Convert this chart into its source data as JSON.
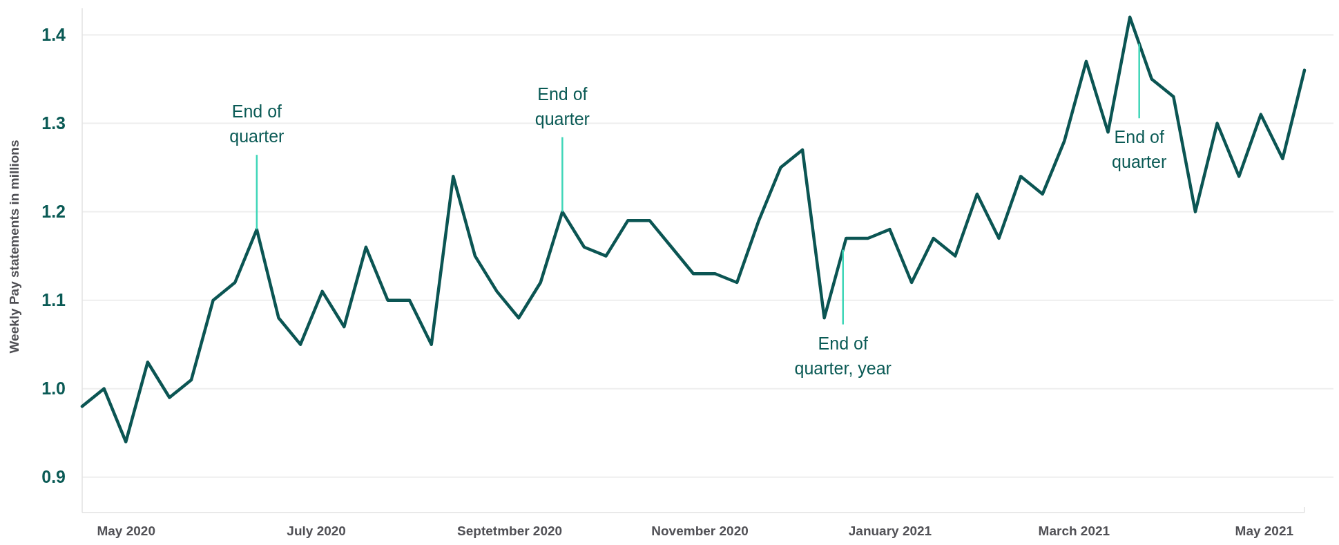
{
  "chart_data": {
    "type": "line",
    "ylabel": "Weekly Pay statements in millions",
    "x": [
      "2020-04-17",
      "2020-04-24",
      "2020-05-01",
      "2020-05-08",
      "2020-05-15",
      "2020-05-22",
      "2020-05-29",
      "2020-06-05",
      "2020-06-12",
      "2020-06-19",
      "2020-06-26",
      "2020-07-03",
      "2020-07-10",
      "2020-07-17",
      "2020-07-24",
      "2020-07-31",
      "2020-08-07",
      "2020-08-14",
      "2020-08-21",
      "2020-08-28",
      "2020-09-04",
      "2020-09-11",
      "2020-09-18",
      "2020-09-25",
      "2020-10-02",
      "2020-10-09",
      "2020-10-16",
      "2020-10-23",
      "2020-10-30",
      "2020-11-06",
      "2020-11-13",
      "2020-11-20",
      "2020-11-27",
      "2020-12-04",
      "2020-12-11",
      "2020-12-18",
      "2020-12-25",
      "2021-01-01",
      "2021-01-08",
      "2021-01-15",
      "2021-01-22",
      "2021-01-29",
      "2021-02-05",
      "2021-02-12",
      "2021-02-19",
      "2021-02-26",
      "2021-03-05",
      "2021-03-12",
      "2021-03-19",
      "2021-03-26",
      "2021-04-02",
      "2021-04-09",
      "2021-04-16",
      "2021-04-23",
      "2021-04-30",
      "2021-05-07",
      "2021-05-14"
    ],
    "series": [
      {
        "color": "#0b5553",
        "values": [
          0.98,
          1.0,
          0.94,
          1.03,
          0.99,
          1.01,
          1.1,
          1.12,
          1.18,
          1.08,
          1.05,
          1.11,
          1.07,
          1.16,
          1.1,
          1.1,
          1.05,
          1.24,
          1.15,
          1.11,
          1.08,
          1.12,
          1.2,
          1.16,
          1.15,
          1.19,
          1.19,
          1.16,
          1.13,
          1.13,
          1.12,
          1.19,
          1.25,
          1.27,
          1.08,
          1.17,
          1.17,
          1.18,
          1.12,
          1.17,
          1.15,
          1.22,
          1.17,
          1.24,
          1.22,
          1.28,
          1.37,
          1.29,
          1.42,
          1.35,
          1.33,
          1.2,
          1.3,
          1.24,
          1.31,
          1.26,
          1.36
        ]
      }
    ],
    "xlim": [
      "2020-04-17",
      "2021-05-14"
    ],
    "xticks": [
      {
        "value": "2020-05-01",
        "label": "May 2020"
      },
      {
        "value": "2020-07-01",
        "label": "July 2020"
      },
      {
        "value": "2020-09-01",
        "label": "Septetmber 2020"
      },
      {
        "value": "2020-11-01",
        "label": "November 2020"
      },
      {
        "value": "2021-01-01",
        "label": "January 2021"
      },
      {
        "value": "2021-03-01",
        "label": "March 2021"
      },
      {
        "value": "2021-05-01",
        "label": "May 2021"
      }
    ],
    "ylim": [
      0.86,
      1.43
    ],
    "yticks": [
      0.9,
      {
        "value": 1,
        "label": "1.0"
      },
      1.1,
      1.2,
      1.3,
      1.4
    ],
    "grid": "y",
    "annotations": [
      {
        "text": "End of quarter",
        "x": "2020-06-12",
        "y": 1.18
      },
      {
        "text": "End of quarter",
        "x": "2020-09-18",
        "y": 1.2
      },
      {
        "text": "End of quarter, year",
        "x": "2020-12-17",
        "y": 1.157
      },
      {
        "text": "End of quarter",
        "x": "2021-03-22",
        "y": 1.39
      }
    ]
  }
}
